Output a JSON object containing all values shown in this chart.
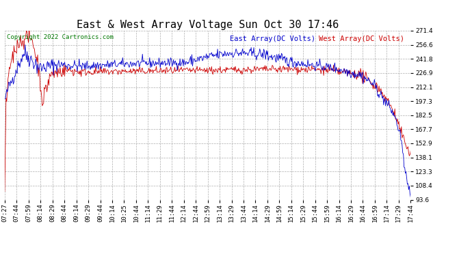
{
  "title": "East & West Array Voltage Sun Oct 30 17:46",
  "copyright": "Copyright 2022 Cartronics.com",
  "legend_east": "East Array(DC Volts)",
  "legend_west": "West Array(DC Volts)",
  "east_color": "#0000cc",
  "west_color": "#cc0000",
  "background_color": "#ffffff",
  "plot_bg_color": "#ffffff",
  "grid_color": "#999999",
  "ylim_min": 93.6,
  "ylim_max": 271.4,
  "yticks": [
    271.4,
    256.6,
    241.8,
    226.9,
    212.1,
    197.3,
    182.5,
    167.7,
    152.9,
    138.1,
    123.3,
    108.4,
    93.6
  ],
  "title_fontsize": 11,
  "legend_fontsize": 7.5,
  "tick_fontsize": 6.5,
  "copyright_fontsize": 6.5,
  "xtick_labels": [
    "07:27",
    "07:44",
    "07:59",
    "08:14",
    "08:29",
    "08:44",
    "09:14",
    "09:29",
    "09:44",
    "10:14",
    "10:25",
    "10:44",
    "11:14",
    "11:29",
    "11:44",
    "12:14",
    "12:44",
    "12:59",
    "13:14",
    "13:29",
    "13:44",
    "14:14",
    "14:29",
    "14:59",
    "15:14",
    "15:29",
    "15:44",
    "15:59",
    "16:14",
    "16:29",
    "16:44",
    "16:59",
    "17:14",
    "17:29",
    "17:44"
  ]
}
